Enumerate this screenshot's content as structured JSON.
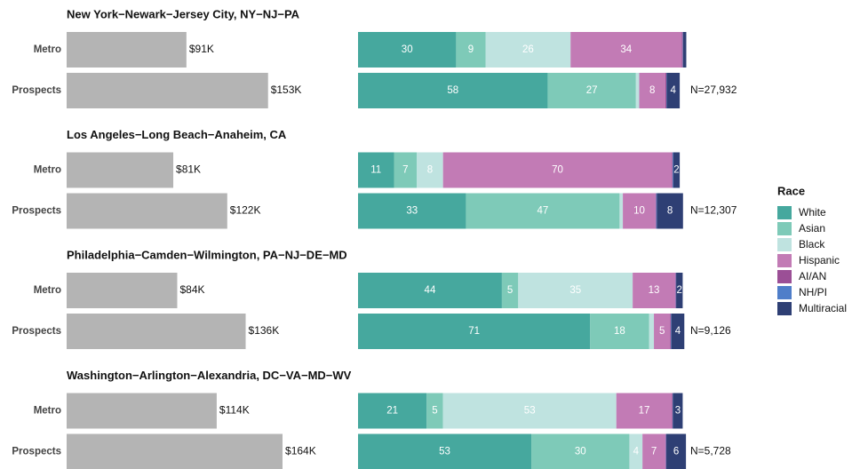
{
  "chart_data": {
    "type": "bar",
    "row_labels": [
      "Metro",
      "Prospects"
    ],
    "income_xlim": [
      0,
      220000
    ],
    "share_xlim": [
      0,
      100
    ],
    "legend": {
      "title": "Race",
      "items": [
        {
          "name": "White",
          "color": "#46a89e"
        },
        {
          "name": "Asian",
          "color": "#7ecab8"
        },
        {
          "name": "Black",
          "color": "#bfe3e0"
        },
        {
          "name": "Hispanic",
          "color": "#c27bb5"
        },
        {
          "name": "AI/AN",
          "color": "#9b4f96"
        },
        {
          "name": "NH/PI",
          "color": "#4f7ec9"
        },
        {
          "name": "Multiracial",
          "color": "#2e3f74"
        }
      ]
    },
    "panels": [
      {
        "title": "New York−Newark−Jersey City, NY−NJ−PA",
        "income": [
          91000,
          153000
        ],
        "income_labels": [
          "$91K",
          "$153K"
        ],
        "shares": [
          [
            30,
            9,
            26,
            34,
            0.3,
            0.1,
            1
          ],
          [
            58,
            27,
            1,
            8,
            0.3,
            0.1,
            4
          ]
        ],
        "n_label": "N=27,932"
      },
      {
        "title": "Los Angeles−Long Beach−Anaheim, CA",
        "income": [
          81000,
          122000
        ],
        "income_labels": [
          "$81K",
          "$122K"
        ],
        "shares": [
          [
            11,
            7,
            8,
            70,
            0.2,
            0.2,
            2
          ],
          [
            33,
            47,
            1,
            10,
            0.2,
            0.2,
            8
          ]
        ],
        "n_label": "N=12,307"
      },
      {
        "title": "Philadelphia−Camden−Wilmington, PA−NJ−DE−MD",
        "income": [
          84000,
          136000
        ],
        "income_labels": [
          "$84K",
          "$136K"
        ],
        "shares": [
          [
            44,
            5,
            35,
            13,
            0.2,
            0.1,
            2
          ],
          [
            71,
            18,
            1.5,
            5,
            0.2,
            0.1,
            4
          ]
        ],
        "n_label": "N=9,126"
      },
      {
        "title": "Washington−Arlington−Alexandria, DC−VA−MD−WV",
        "income": [
          114000,
          164000
        ],
        "income_labels": [
          "$114K",
          "$164K"
        ],
        "shares": [
          [
            21,
            5,
            53,
            17,
            0.2,
            0.1,
            3
          ],
          [
            53,
            30,
            4,
            7,
            0.2,
            0.1,
            6
          ]
        ],
        "n_label": "N=5,728"
      }
    ]
  }
}
